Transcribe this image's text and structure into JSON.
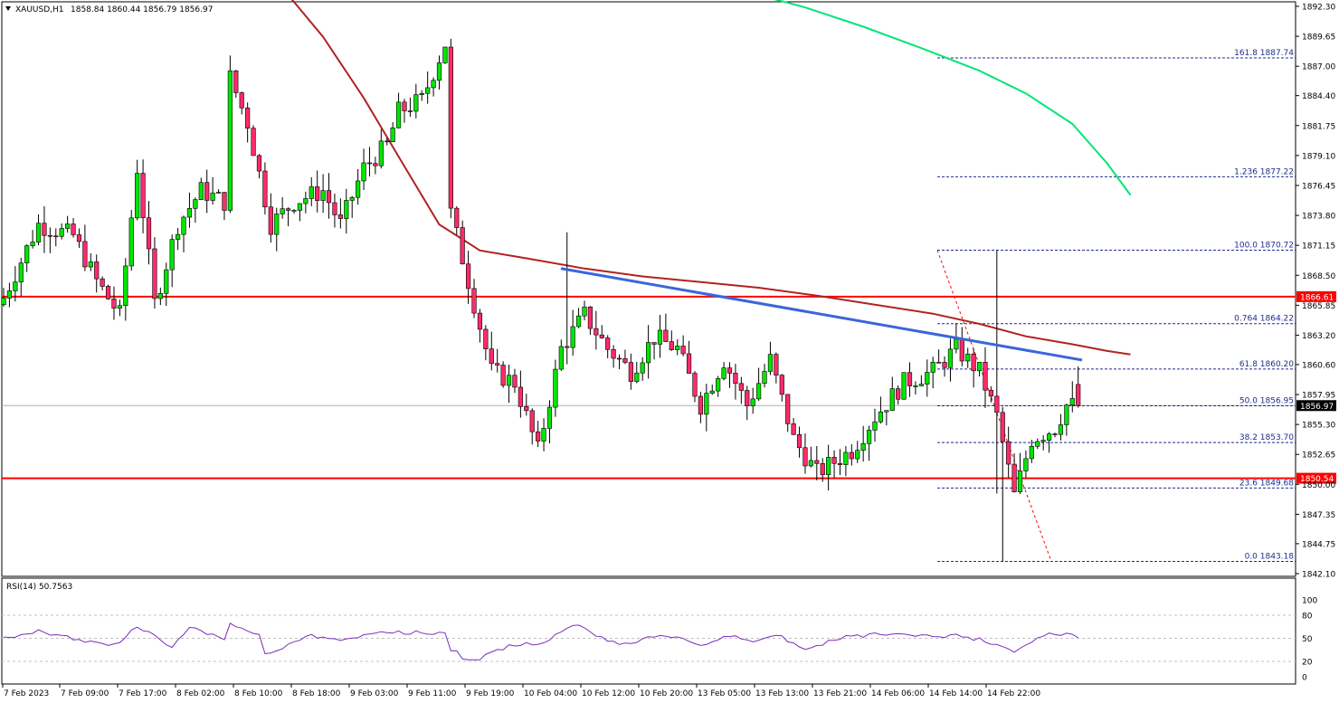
{
  "header": {
    "symbol": "XAUUSD,H1",
    "ohlc": "1858.84 1860.44 1856.79 1856.97",
    "symbol_icon": "triangle-down-icon"
  },
  "indicator": {
    "label": "RSI(14) 50.7563"
  },
  "colors": {
    "bull": "#00e600",
    "bear": "#ff2b6a",
    "wick": "#000000",
    "ma_slow": "#b22222",
    "ma_fast": "#00e676",
    "trendline": "#3a66db",
    "level": "#ff0000",
    "fib": "#1f2c8f",
    "rsi": "#7b2cbf"
  },
  "chart_data": {
    "type": "candlestick",
    "symbol": "XAUUSD",
    "timeframe": "H1",
    "ylim": [
      1842.1,
      1893.3
    ],
    "yticks": [
      "1892.30",
      "1889.65",
      "1887.00",
      "1884.40",
      "1881.75",
      "1879.10",
      "1876.45",
      "1873.80",
      "1871.15",
      "1868.50",
      "1865.85",
      "1863.20",
      "1860.60",
      "1857.95",
      "1855.30",
      "1852.65",
      "1850.00",
      "1847.35",
      "1844.75",
      "1842.10"
    ],
    "xlabels": [
      "7 Feb 2023",
      "7 Feb 09:00",
      "7 Feb 17:00",
      "8 Feb 02:00",
      "8 Feb 10:00",
      "8 Feb 18:00",
      "9 Feb 03:00",
      "9 Feb 11:00",
      "9 Feb 19:00",
      "10 Feb 04:00",
      "10 Feb 12:00",
      "10 Feb 20:00",
      "13 Feb 05:00",
      "13 Feb 13:00",
      "13 Feb 21:00",
      "14 Feb 06:00",
      "14 Feb 14:00",
      "14 Feb 22:00"
    ],
    "horizontal_levels": [
      {
        "price": 1866.61,
        "label": "1866.61"
      },
      {
        "price": 1850.54,
        "label": "1850.54"
      }
    ],
    "current_price": {
      "price": 1856.97,
      "label": "1856.97"
    },
    "fibonacci": [
      {
        "label": "161.8 1887.74",
        "price": 1887.74
      },
      {
        "label": "1.236 1877.22",
        "price": 1877.22
      },
      {
        "label": "100.0 1870.72",
        "price": 1870.72
      },
      {
        "label": "0.764 1864.22",
        "price": 1864.22
      },
      {
        "label": "61.8 1860.20",
        "price": 1860.2
      },
      {
        "label": "50.0 1856.95",
        "price": 1856.95
      },
      {
        "label": "38.2 1853.70",
        "price": 1853.7
      },
      {
        "label": "23.6 1849.68",
        "price": 1849.68
      },
      {
        "label": "0.0 1843.18",
        "price": 1843.18
      }
    ],
    "trendline": {
      "from": {
        "bar": 100,
        "price": 1869.1
      },
      "to": {
        "bar": 194,
        "price": 1861.0
      }
    },
    "fib_diagonal": {
      "from": {
        "bar": 171,
        "price": 1870.72
      },
      "to": {
        "bar": 192,
        "price": 1843.18
      }
    },
    "ma_slow": [
      [
        49,
        1893.3
      ],
      [
        55,
        1889.6
      ],
      [
        62,
        1884.2
      ],
      [
        68,
        1879.0
      ],
      [
        75,
        1873.0
      ],
      [
        82,
        1870.7
      ],
      [
        90,
        1870.0
      ],
      [
        100,
        1869.1
      ],
      [
        110,
        1868.4
      ],
      [
        118,
        1868.0
      ],
      [
        130,
        1867.4
      ],
      [
        140,
        1866.7
      ],
      [
        150,
        1865.9
      ],
      [
        160,
        1865.1
      ],
      [
        168,
        1864.2
      ],
      [
        176,
        1863.1
      ],
      [
        184,
        1862.4
      ],
      [
        190,
        1861.8
      ],
      [
        194,
        1861.5
      ]
    ],
    "ma_fast": [
      [
        130,
        1893.3
      ],
      [
        138,
        1892.2
      ],
      [
        148,
        1890.5
      ],
      [
        158,
        1888.6
      ],
      [
        168,
        1886.6
      ],
      [
        176,
        1884.6
      ],
      [
        184,
        1881.9
      ],
      [
        190,
        1878.4
      ],
      [
        194,
        1875.6
      ]
    ],
    "rsi": {
      "ylim": [
        0,
        100
      ],
      "ticks": [
        100,
        80,
        50,
        20,
        0
      ],
      "dashed_levels": [
        80,
        50,
        20
      ],
      "last": 50.7563
    }
  }
}
